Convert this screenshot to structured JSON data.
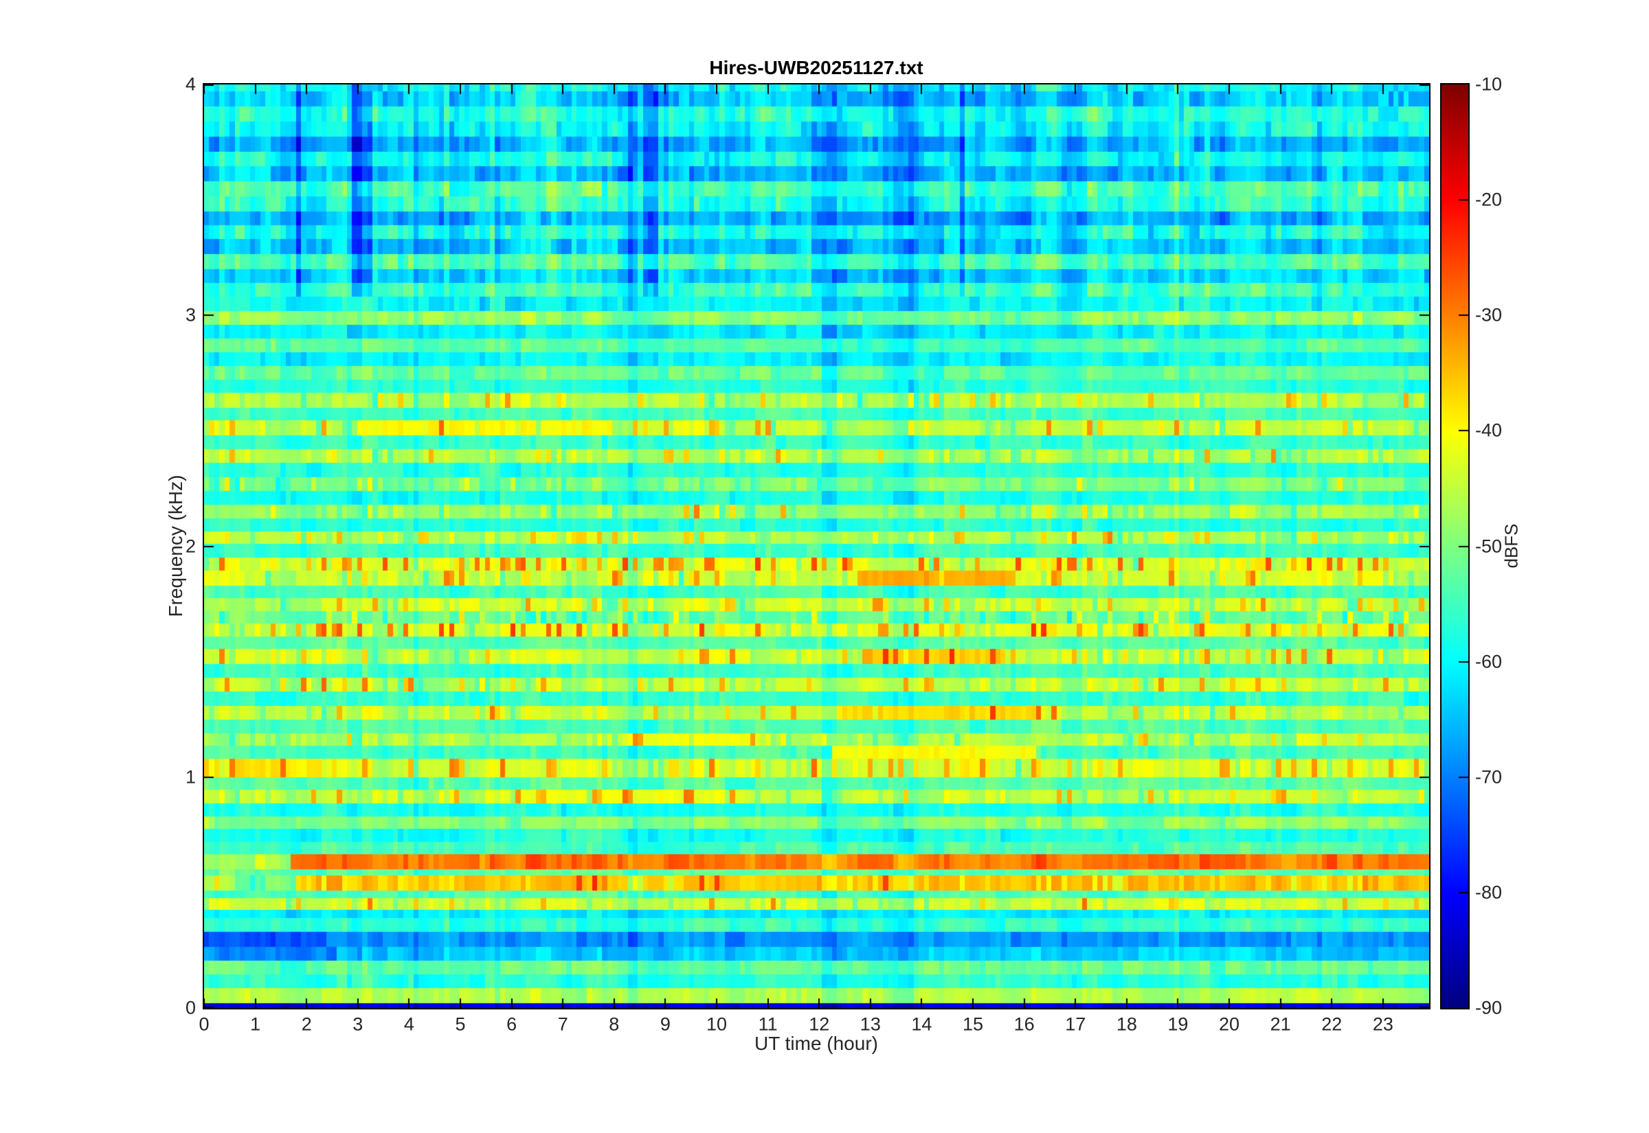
{
  "title": "Hires-UWB20251127.txt",
  "axes": {
    "xlabel": "UT time (hour)",
    "ylabel": "Frequency (kHz)"
  },
  "colorbar": {
    "label": "dBFS",
    "tick_labels": [
      "-10",
      "-20",
      "-30",
      "-40",
      "-50",
      "-60",
      "-70",
      "-80",
      "-90"
    ]
  },
  "chart_data": {
    "type": "heatmap",
    "title": "Hires-UWB20251127.txt",
    "xlabel": "UT time (hour)",
    "ylabel": "Frequency (kHz)",
    "value_unit": "dBFS",
    "colormap": "jet",
    "grid": false,
    "x_range": [
      0,
      23.9
    ],
    "y_range": [
      0,
      4
    ],
    "x_ticks": [
      0,
      1,
      2,
      3,
      4,
      5,
      6,
      7,
      8,
      9,
      10,
      11,
      12,
      13,
      14,
      15,
      16,
      17,
      18,
      19,
      20,
      21,
      22,
      23
    ],
    "y_ticks": [
      0,
      1,
      2,
      3,
      4
    ],
    "value_range": [
      -90,
      -10
    ],
    "colorbar_ticks": [
      -10,
      -20,
      -30,
      -40,
      -50,
      -60,
      -70,
      -80,
      -90
    ],
    "time_bins": 240,
    "seed": 1127,
    "bands_comment": "each band: [freq_lo_kHz, freq_hi_kHz, base_dBFS, variability_dB, speckle_level_0to3, onset_hour_or_null, base_dBFS_before_onset_or_null]",
    "bands": [
      [
        0.0,
        0.02,
        -82,
        1.0,
        0,
        null,
        null
      ],
      [
        0.02,
        0.085,
        -46,
        2.0,
        0,
        null,
        null
      ],
      [
        0.085,
        0.145,
        -57,
        2.0,
        0,
        null,
        null
      ],
      [
        0.145,
        0.205,
        -52,
        2.0,
        0,
        null,
        null
      ],
      [
        0.205,
        0.265,
        -64,
        2.0,
        0,
        null,
        null
      ],
      [
        0.265,
        0.33,
        -68,
        2.0,
        0,
        null,
        null
      ],
      [
        0.33,
        0.39,
        -56,
        2.0,
        0,
        null,
        null
      ],
      [
        0.39,
        0.425,
        -61,
        2.0,
        0,
        null,
        null
      ],
      [
        0.425,
        0.475,
        -44,
        2.0,
        1,
        null,
        null
      ],
      [
        0.475,
        0.51,
        -54,
        2.0,
        0,
        null,
        null
      ],
      [
        0.51,
        0.575,
        -35,
        2.0,
        1,
        1.75,
        -50
      ],
      [
        0.575,
        0.6,
        -52,
        2.0,
        0,
        null,
        null
      ],
      [
        0.6,
        0.665,
        -29,
        2.5,
        0,
        1.7,
        -46
      ],
      [
        0.665,
        0.72,
        -54,
        2.0,
        0,
        null,
        null
      ],
      [
        0.72,
        0.775,
        -58,
        2.0,
        0,
        null,
        null
      ],
      [
        0.775,
        0.83,
        -49,
        2.5,
        0,
        null,
        null
      ],
      [
        0.83,
        0.885,
        -58,
        2.0,
        0,
        null,
        null
      ],
      [
        0.885,
        0.945,
        -45,
        2.5,
        2,
        null,
        null
      ],
      [
        0.945,
        1.0,
        -53,
        2.0,
        0,
        null,
        null
      ],
      [
        1.0,
        1.08,
        -43,
        2.5,
        2,
        2.3,
        -37
      ],
      [
        1.08,
        1.135,
        -55,
        2.0,
        0,
        null,
        null
      ],
      [
        1.135,
        1.19,
        -46,
        2.5,
        1,
        null,
        null
      ],
      [
        1.19,
        1.25,
        -54,
        2.0,
        0,
        null,
        null
      ],
      [
        1.25,
        1.31,
        -45,
        2.5,
        1,
        null,
        null
      ],
      [
        1.31,
        1.37,
        -56,
        2.0,
        0,
        null,
        null
      ],
      [
        1.37,
        1.43,
        -45,
        3.0,
        2,
        null,
        null
      ],
      [
        1.43,
        1.49,
        -55,
        2.0,
        0,
        null,
        null
      ],
      [
        1.49,
        1.555,
        -44,
        3.0,
        2,
        null,
        null
      ],
      [
        1.555,
        1.61,
        -53,
        2.0,
        0,
        null,
        null
      ],
      [
        1.61,
        1.665,
        -43,
        3.0,
        3,
        null,
        null
      ],
      [
        1.665,
        1.72,
        -52,
        2.5,
        1,
        null,
        null
      ],
      [
        1.72,
        1.775,
        -45,
        3.0,
        2,
        null,
        null
      ],
      [
        1.775,
        1.83,
        -55,
        2.0,
        0,
        null,
        null
      ],
      [
        1.83,
        1.895,
        -44,
        3.0,
        2,
        null,
        null
      ],
      [
        1.895,
        1.95,
        -43,
        3.0,
        3,
        null,
        null
      ],
      [
        1.95,
        2.01,
        -55,
        2.0,
        0,
        null,
        null
      ],
      [
        2.01,
        2.065,
        -46,
        2.5,
        2,
        null,
        null
      ],
      [
        2.065,
        2.12,
        -57,
        2.0,
        0,
        null,
        null
      ],
      [
        2.12,
        2.18,
        -48,
        2.5,
        1,
        null,
        null
      ],
      [
        2.18,
        2.24,
        -58,
        2.0,
        0,
        null,
        null
      ],
      [
        2.24,
        2.3,
        -50,
        2.5,
        1,
        null,
        null
      ],
      [
        2.3,
        2.36,
        -57,
        2.0,
        0,
        null,
        null
      ],
      [
        2.36,
        2.42,
        -46,
        2.5,
        1,
        null,
        null
      ],
      [
        2.42,
        2.48,
        -56,
        2.0,
        0,
        null,
        null
      ],
      [
        2.48,
        2.545,
        -45,
        2.5,
        2,
        null,
        null
      ],
      [
        2.545,
        2.6,
        -55,
        2.0,
        0,
        null,
        null
      ],
      [
        2.6,
        2.665,
        -46,
        2.5,
        1,
        null,
        null
      ],
      [
        2.665,
        2.72,
        -57,
        2.0,
        0,
        null,
        null
      ],
      [
        2.72,
        2.78,
        -52,
        2.5,
        0,
        null,
        null
      ],
      [
        2.78,
        2.84,
        -60,
        2.0,
        0,
        null,
        null
      ],
      [
        2.84,
        2.9,
        -53,
        2.5,
        0,
        null,
        null
      ],
      [
        2.9,
        2.96,
        -61,
        2.5,
        0,
        null,
        null
      ],
      [
        2.96,
        3.02,
        -49,
        2.5,
        0,
        null,
        null
      ],
      [
        3.02,
        3.08,
        -60,
        2.5,
        0,
        null,
        null
      ],
      [
        3.08,
        3.14,
        -55,
        2.5,
        0,
        null,
        null
      ],
      [
        3.14,
        3.2,
        -63,
        2.5,
        0,
        null,
        null
      ],
      [
        3.2,
        3.265,
        -54,
        2.5,
        0,
        null,
        null
      ],
      [
        3.265,
        3.33,
        -64,
        3.0,
        0,
        null,
        null
      ],
      [
        3.33,
        3.39,
        -58,
        3.0,
        0,
        null,
        null
      ],
      [
        3.39,
        3.45,
        -66,
        3.0,
        0,
        null,
        null
      ],
      [
        3.45,
        3.515,
        -57,
        3.0,
        0,
        null,
        null
      ],
      [
        3.515,
        3.58,
        -54,
        3.0,
        0,
        null,
        null
      ],
      [
        3.58,
        3.645,
        -65,
        3.0,
        0,
        null,
        null
      ],
      [
        3.645,
        3.71,
        -59,
        3.0,
        0,
        null,
        null
      ],
      [
        3.71,
        3.775,
        -66,
        3.0,
        0,
        null,
        null
      ],
      [
        3.775,
        3.84,
        -60,
        3.0,
        0,
        null,
        null
      ],
      [
        3.84,
        3.905,
        -57,
        3.0,
        0,
        null,
        null
      ],
      [
        3.905,
        3.97,
        -64,
        3.0,
        0,
        null,
        null
      ],
      [
        3.97,
        4.0,
        -60,
        3.0,
        0,
        null,
        null
      ]
    ],
    "runs_comment": "localized events: [freq_lo, freq_hi, hour_start, hour_end, level_dBFS]",
    "runs": [
      [
        1.83,
        1.895,
        12.7,
        15.8,
        -33
      ],
      [
        1.49,
        1.555,
        13.0,
        15.6,
        -36
      ],
      [
        1.25,
        1.31,
        12.3,
        16.4,
        -37
      ],
      [
        1.135,
        1.19,
        8.3,
        11.4,
        -41
      ],
      [
        1.08,
        1.135,
        12.2,
        16.2,
        -40
      ],
      [
        2.48,
        2.545,
        3.0,
        8.0,
        -40
      ],
      [
        0.885,
        0.945,
        6.0,
        10.5,
        -41
      ],
      [
        0.265,
        0.33,
        0.0,
        2.4,
        -74
      ],
      [
        0.205,
        0.265,
        0.2,
        2.6,
        -70
      ]
    ]
  }
}
